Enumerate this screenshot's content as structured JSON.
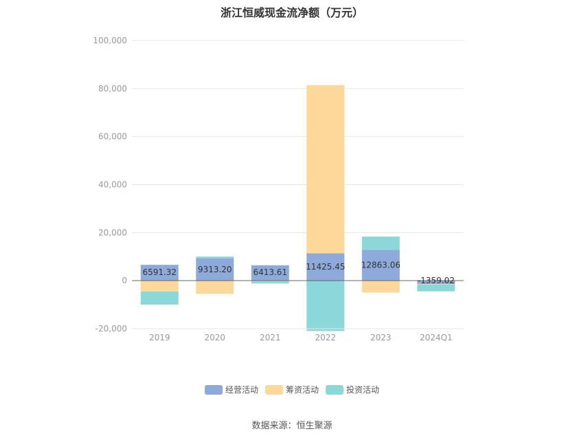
{
  "chart_data": {
    "type": "bar",
    "stacked": true,
    "title": "浙江恒威现金流净额（万元）",
    "categories": [
      "2019",
      "2020",
      "2021",
      "2022",
      "2023",
      "2024Q1"
    ],
    "series": [
      {
        "name": "经营活动",
        "color": "#8eaadb",
        "values": [
          6591.32,
          9313.2,
          6413.61,
          11425.45,
          12863.06,
          -1359.02
        ]
      },
      {
        "name": "筹资活动",
        "color": "#fdd89a",
        "values": [
          -4500,
          -5500,
          -300,
          70000,
          -5000,
          -200
        ]
      },
      {
        "name": "投资活动",
        "color": "#8cd8d8",
        "values": [
          -5500,
          700,
          -900,
          -21000,
          5500,
          -2900
        ]
      }
    ],
    "data_labels": [
      "6591.32",
      "9313.20",
      "6413.61",
      "11425.45",
      "12863.06",
      "-1359.02"
    ],
    "y_ticks": [
      "100,000",
      "80,000",
      "60,000",
      "40,000",
      "20,000",
      "0",
      "-20,000"
    ],
    "ylim": [
      -20000,
      100000
    ],
    "grid": true,
    "legend_position": "bottom"
  },
  "source": "数据来源：恒生聚源"
}
